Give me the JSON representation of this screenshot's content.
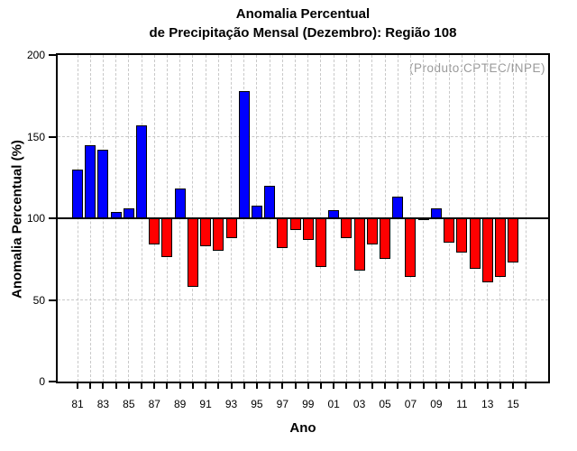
{
  "title": {
    "line1": "Anomalia Percentual",
    "line2": "de Precipitação Mensal (Dezembro): Região 108"
  },
  "credit_label": "(Produto:CPTEC/INPE)",
  "chart_data": {
    "type": "bar",
    "title": "Anomalia Percentual de Precipitação Mensal (Dezembro): Região 108",
    "xlabel": "Ano",
    "ylabel": "Anomalia Percentual (%)",
    "ylim": [
      0,
      200
    ],
    "yticks": [
      0,
      50,
      100,
      150,
      200
    ],
    "ytick_labels": [
      "0",
      "50",
      "100",
      "150",
      "200"
    ],
    "baseline": 100,
    "h_gridlines": [
      50,
      150
    ],
    "grid": "dashed vertical line at every year tick, dashed horizontal at 50 and 150, solid black line at 100",
    "legend": "none",
    "annotation": "(Produto:CPTEC/INPE)",
    "categories": [
      "81",
      "82",
      "83",
      "84",
      "85",
      "86",
      "87",
      "88",
      "89",
      "90",
      "91",
      "92",
      "93",
      "94",
      "95",
      "96",
      "97",
      "98",
      "99",
      "00",
      "01",
      "02",
      "03",
      "04",
      "05",
      "06",
      "07",
      "08",
      "09",
      "10",
      "11",
      "12",
      "13",
      "14",
      "15"
    ],
    "values": [
      130,
      145,
      142,
      104,
      106,
      157,
      84,
      76,
      118,
      58,
      83,
      80,
      88,
      178,
      108,
      120,
      82,
      93,
      87,
      70,
      105,
      88,
      68,
      84,
      75,
      113,
      64,
      99,
      106,
      85,
      79,
      69,
      61,
      64,
      73
    ],
    "xtick_labels": [
      "81",
      "83",
      "85",
      "87",
      "89",
      "91",
      "93",
      "95",
      "97",
      "99",
      "01",
      "03",
      "05",
      "07",
      "09",
      "11",
      "13",
      "15"
    ],
    "colors": {
      "above_baseline": "#0000ff",
      "below_baseline": "#ff0000",
      "axis": "#000000",
      "grid": "#c9c9c9",
      "credit_text": "#9a9a9a"
    }
  }
}
